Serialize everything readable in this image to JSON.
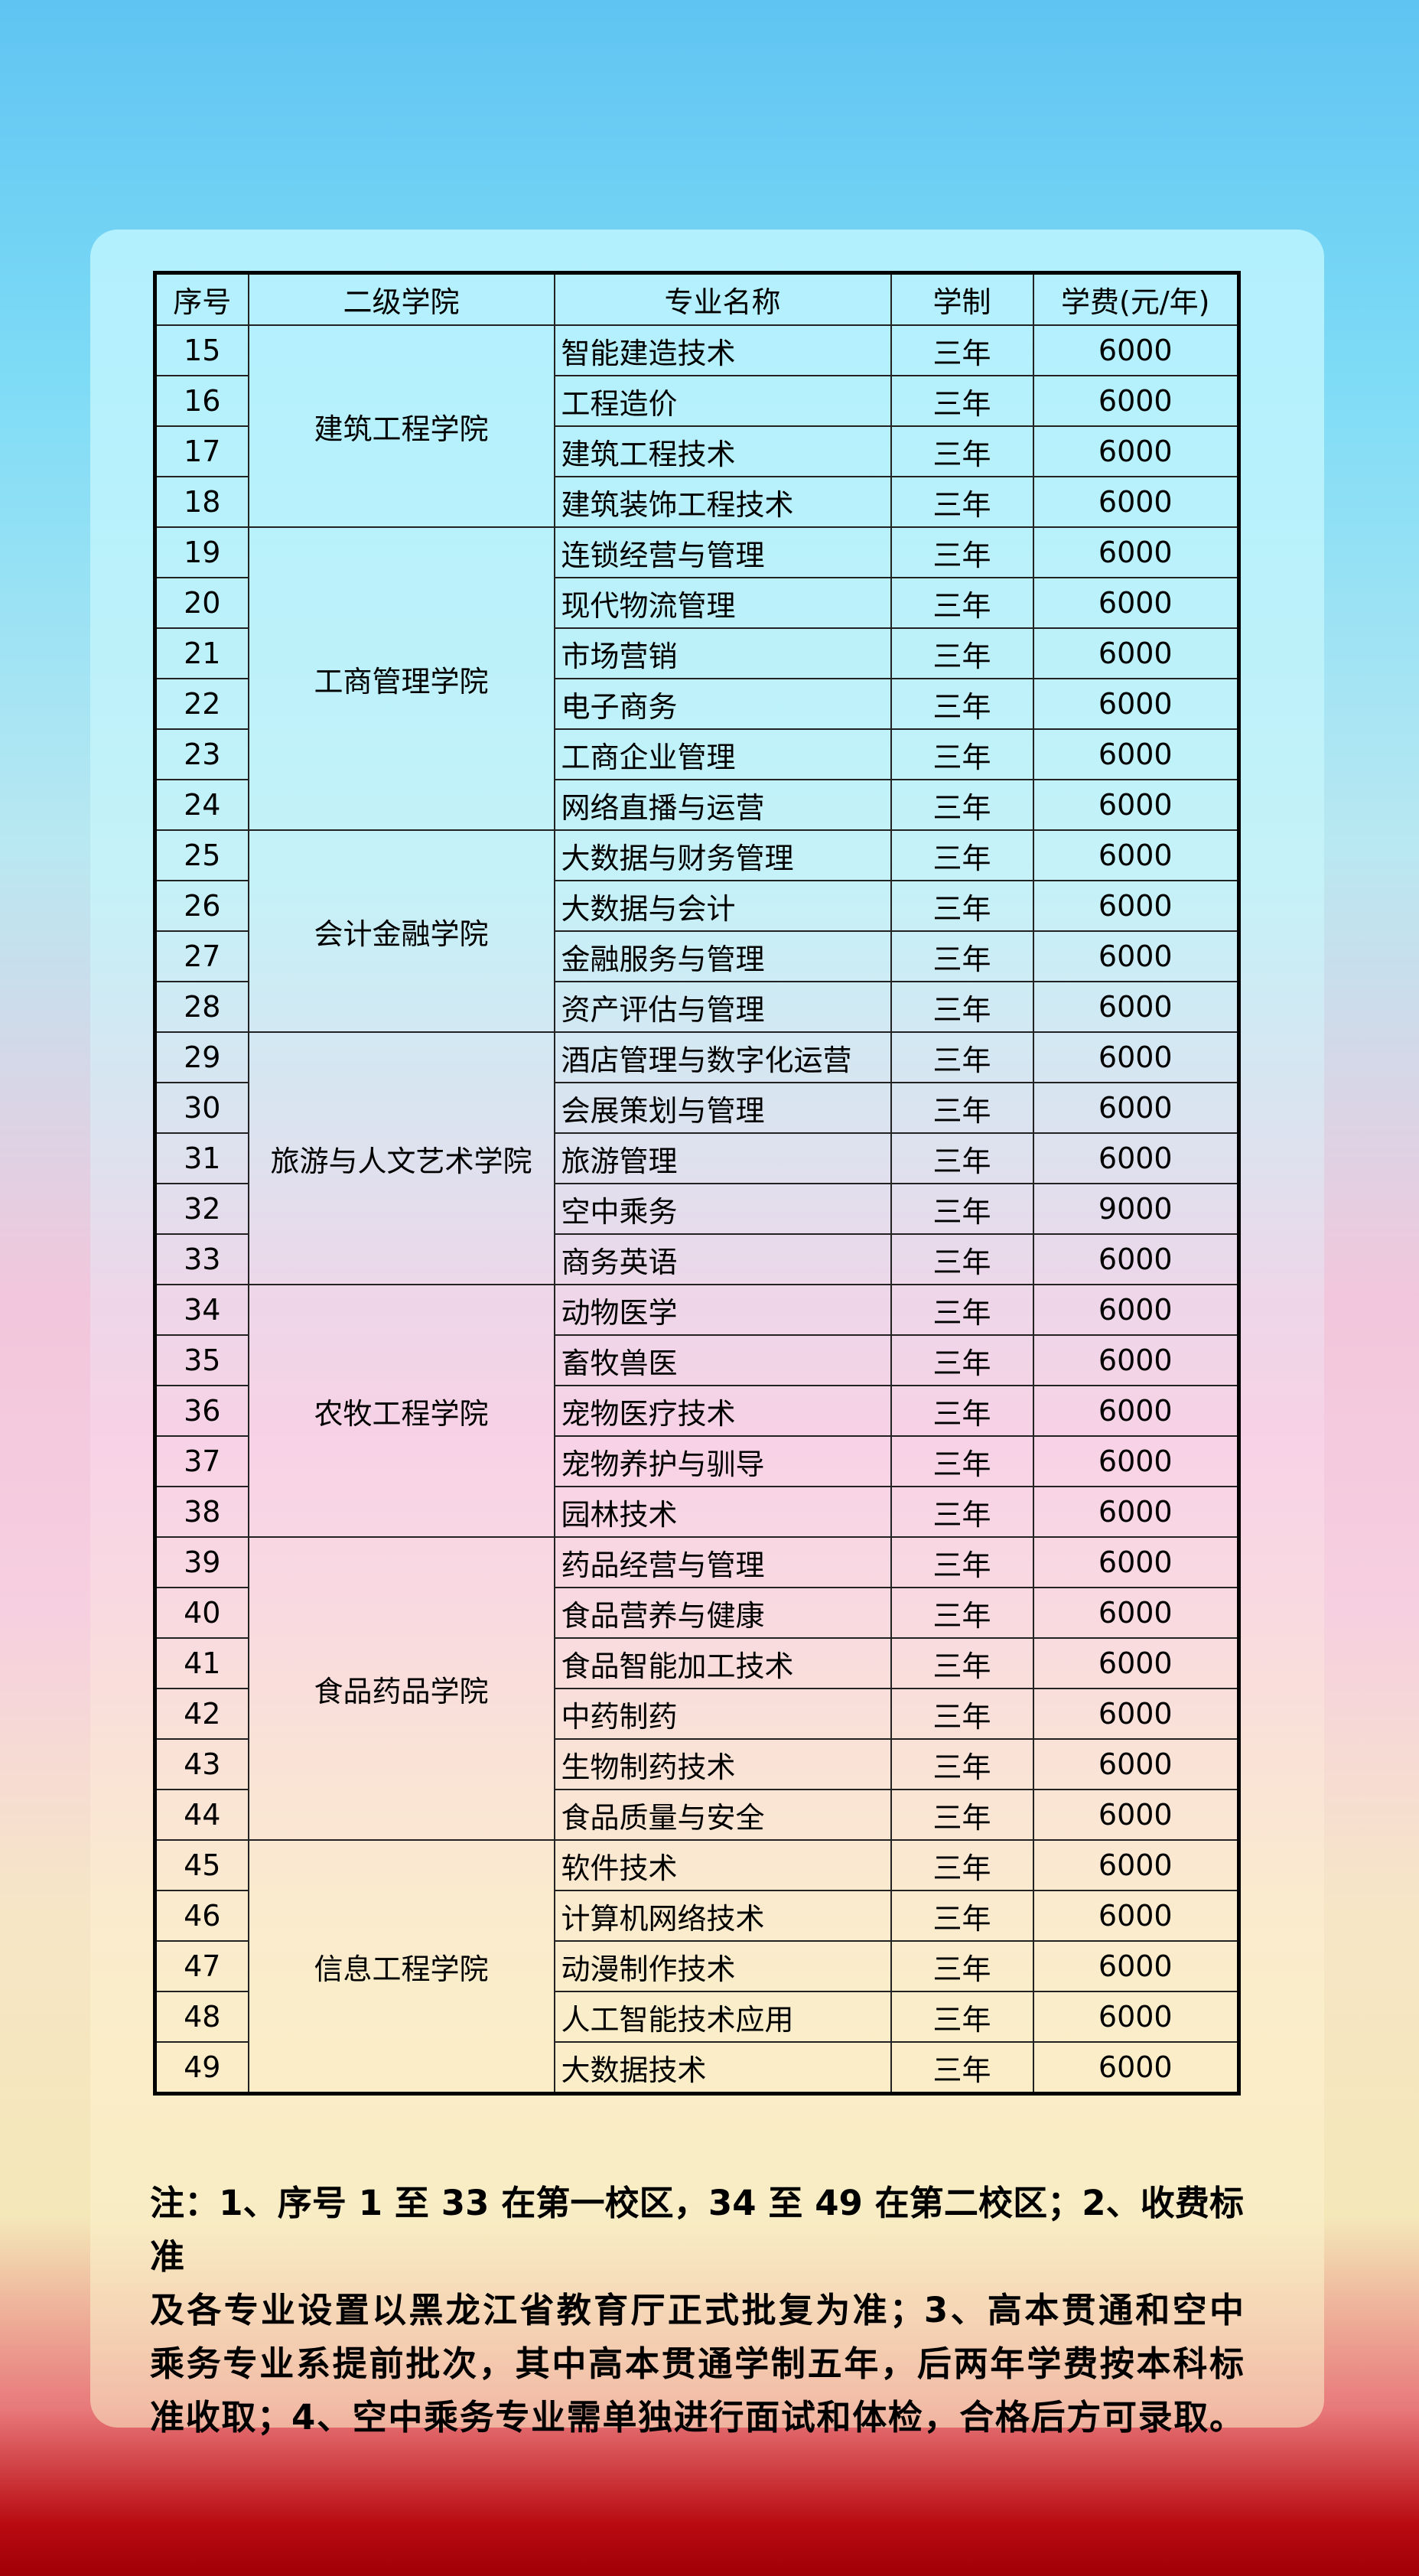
{
  "table": {
    "headers": [
      "序号",
      "二级学院",
      "专业名称",
      "学制",
      "学费(元/年)"
    ],
    "groups": [
      {
        "college": "建筑工程学院",
        "rows": [
          [
            "15",
            "智能建造技术",
            "三年",
            "6000"
          ],
          [
            "16",
            "工程造价",
            "三年",
            "6000"
          ],
          [
            "17",
            "建筑工程技术",
            "三年",
            "6000"
          ],
          [
            "18",
            "建筑装饰工程技术",
            "三年",
            "6000"
          ]
        ]
      },
      {
        "college": "工商管理学院",
        "rows": [
          [
            "19",
            "连锁经营与管理",
            "三年",
            "6000"
          ],
          [
            "20",
            "现代物流管理",
            "三年",
            "6000"
          ],
          [
            "21",
            "市场营销",
            "三年",
            "6000"
          ],
          [
            "22",
            "电子商务",
            "三年",
            "6000"
          ],
          [
            "23",
            "工商企业管理",
            "三年",
            "6000"
          ],
          [
            "24",
            "网络直播与运营",
            "三年",
            "6000"
          ]
        ]
      },
      {
        "college": "会计金融学院",
        "rows": [
          [
            "25",
            "大数据与财务管理",
            "三年",
            "6000"
          ],
          [
            "26",
            "大数据与会计",
            "三年",
            "6000"
          ],
          [
            "27",
            "金融服务与管理",
            "三年",
            "6000"
          ],
          [
            "28",
            "资产评估与管理",
            "三年",
            "6000"
          ]
        ]
      },
      {
        "college": "旅游与人文艺术学院",
        "rows": [
          [
            "29",
            "酒店管理与数字化运营",
            "三年",
            "6000"
          ],
          [
            "30",
            "会展策划与管理",
            "三年",
            "6000"
          ],
          [
            "31",
            "旅游管理",
            "三年",
            "6000"
          ],
          [
            "32",
            "空中乘务",
            "三年",
            "9000"
          ],
          [
            "33",
            "商务英语",
            "三年",
            "6000"
          ]
        ]
      },
      {
        "college": "农牧工程学院",
        "rows": [
          [
            "34",
            "动物医学",
            "三年",
            "6000"
          ],
          [
            "35",
            "畜牧兽医",
            "三年",
            "6000"
          ],
          [
            "36",
            "宠物医疗技术",
            "三年",
            "6000"
          ],
          [
            "37",
            "宠物养护与驯导",
            "三年",
            "6000"
          ],
          [
            "38",
            "园林技术",
            "三年",
            "6000"
          ]
        ]
      },
      {
        "college": "食品药品学院",
        "rows": [
          [
            "39",
            "药品经营与管理",
            "三年",
            "6000"
          ],
          [
            "40",
            "食品营养与健康",
            "三年",
            "6000"
          ],
          [
            "41",
            "食品智能加工技术",
            "三年",
            "6000"
          ],
          [
            "42",
            "中药制药",
            "三年",
            "6000"
          ],
          [
            "43",
            "生物制药技术",
            "三年",
            "6000"
          ],
          [
            "44",
            "食品质量与安全",
            "三年",
            "6000"
          ]
        ]
      },
      {
        "college": "信息工程学院",
        "rows": [
          [
            "45",
            "软件技术",
            "三年",
            "6000"
          ],
          [
            "46",
            "计算机网络技术",
            "三年",
            "6000"
          ],
          [
            "47",
            "动漫制作技术",
            "三年",
            "6000"
          ],
          [
            "48",
            "人工智能技术应用",
            "三年",
            "6000"
          ],
          [
            "49",
            "大数据技术",
            "三年",
            "6000"
          ]
        ]
      }
    ]
  },
  "notes": {
    "lines": [
      "注：1、序号 1 至 33 在第一校区，34 至 49 在第二校区；2、收费标准",
      "及各专业设置以黑龙江省教育厅正式批复为准；3、高本贯通和空中",
      "乘务专业系提前批次，其中高本贯通学制五年，后两年学费按本科标",
      "准收取；4、空中乘务专业需单独进行面试和体检，合格后方可录取。"
    ]
  }
}
